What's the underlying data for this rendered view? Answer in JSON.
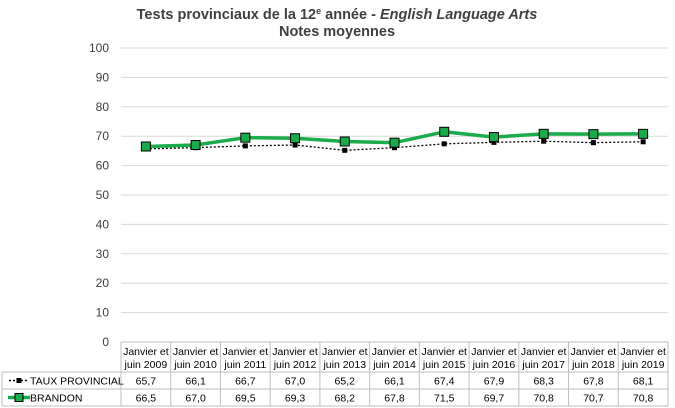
{
  "chart_data": {
    "type": "line",
    "title_prefix": "Tests provinciaux de la 12",
    "title_sup": "e",
    "title_mid": " année - ",
    "title_italic": "English Language Arts",
    "subtitle": "Notes moyennes",
    "ylim": [
      0,
      100
    ],
    "yticks": [
      0,
      10,
      20,
      30,
      40,
      50,
      60,
      70,
      80,
      90,
      100
    ],
    "grid": true,
    "legend_placement": "data-table-left",
    "categories": [
      [
        "Janvier et",
        "juin 2009"
      ],
      [
        "Janvier et",
        "juin 2010"
      ],
      [
        "Janvier et",
        "juin 2011"
      ],
      [
        "Janvier et",
        "juin 2012"
      ],
      [
        "Janvier et",
        "juin 2013"
      ],
      [
        "Janvier et",
        "juin 2014"
      ],
      [
        "Janvier et",
        "juin 2015"
      ],
      [
        "Janvier et",
        "juin 2016"
      ],
      [
        "Janvier et",
        "juin 2017"
      ],
      [
        "Janvier et",
        "juin 2018"
      ],
      [
        "Janvier et",
        "juin 2019"
      ]
    ],
    "series": [
      {
        "name": "TAUX PROVINCIAL",
        "color": "#000000",
        "style": "dotted-square",
        "values": [
          65.7,
          66.1,
          66.7,
          67.0,
          65.2,
          66.1,
          67.4,
          67.9,
          68.3,
          67.8,
          68.1
        ],
        "labels": [
          "65,7",
          "66,1",
          "66,7",
          "67,0",
          "65,2",
          "66,1",
          "67,4",
          "67,9",
          "68,3",
          "67,8",
          "68,1"
        ]
      },
      {
        "name": "BRANDON",
        "color": "#1aab4b",
        "marker_color": "#1aab4b",
        "style": "thick-square",
        "values": [
          66.5,
          67.0,
          69.5,
          69.3,
          68.2,
          67.8,
          71.5,
          69.7,
          70.8,
          70.7,
          70.8
        ],
        "labels": [
          "66,5",
          "67,0",
          "69,5",
          "69,3",
          "68,2",
          "67,8",
          "71,5",
          "69,7",
          "70,8",
          "70,7",
          "70,8"
        ]
      }
    ]
  }
}
